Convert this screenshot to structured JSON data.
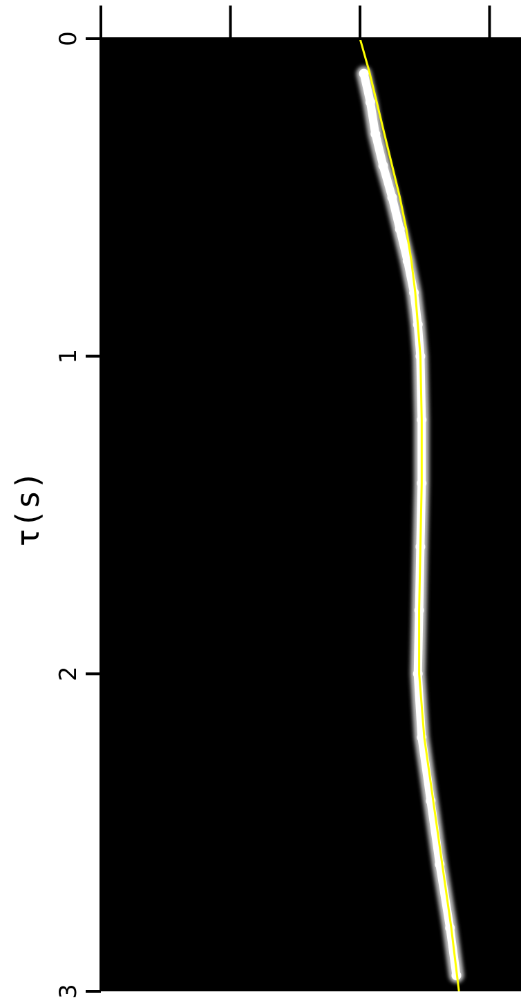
{
  "chart_data": {
    "type": "heatmap",
    "title": "",
    "orientation": "rotated",
    "tau_axis": {
      "label": "τ(s)",
      "range": [
        0,
        3
      ],
      "ticks": [
        0,
        1,
        2,
        3
      ],
      "tick_labels": [
        "0",
        "1",
        "2",
        "3"
      ]
    },
    "top_axis": {
      "label": "",
      "tick_count": 4,
      "tick_labels": []
    },
    "colors": {
      "background": "#000000",
      "energy": "#ffffff",
      "picked_curve": "#ffff00",
      "axes": "#000000"
    },
    "grid": false,
    "legend": "none",
    "series": [
      {
        "kind": "energy_trace",
        "tau": [
          0.11,
          0.2,
          0.3,
          0.4,
          0.5,
          0.6,
          0.7,
          0.8,
          0.9,
          1.0,
          1.2,
          1.4,
          1.6,
          1.8,
          2.0,
          2.2,
          2.4,
          2.6,
          2.8,
          2.95
        ],
        "position": [
          0.03,
          0.08,
          0.12,
          0.18,
          0.25,
          0.31,
          0.37,
          0.42,
          0.45,
          0.47,
          0.48,
          0.48,
          0.47,
          0.46,
          0.45,
          0.48,
          0.55,
          0.62,
          0.7,
          0.75
        ]
      },
      {
        "kind": "fitted_curve",
        "tau": [
          0.0,
          0.1,
          0.2,
          0.3,
          0.4,
          0.5,
          0.6,
          0.7,
          0.8,
          0.9,
          1.0,
          1.2,
          1.4,
          1.6,
          1.8,
          2.0,
          2.2,
          2.4,
          2.6,
          2.8,
          3.0
        ],
        "position": [
          0.0,
          0.07,
          0.13,
          0.19,
          0.25,
          0.31,
          0.36,
          0.4,
          0.43,
          0.45,
          0.47,
          0.48,
          0.48,
          0.47,
          0.46,
          0.46,
          0.5,
          0.57,
          0.64,
          0.71,
          0.77
        ]
      }
    ]
  }
}
